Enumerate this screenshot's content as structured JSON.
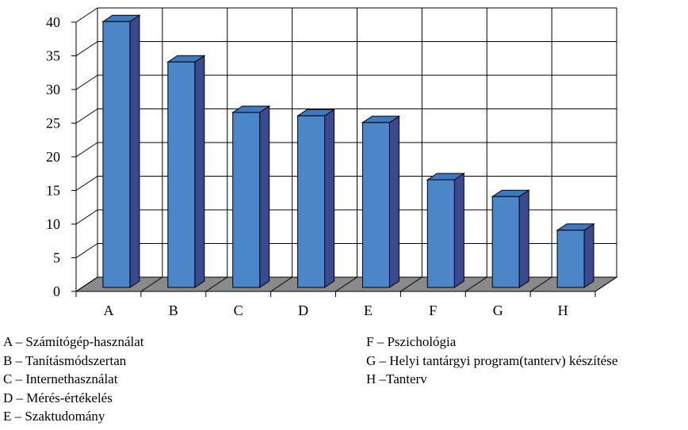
{
  "chart_data": {
    "type": "bar",
    "style": "3d-column",
    "categories": [
      "A",
      "B",
      "C",
      "D",
      "E",
      "F",
      "G",
      "H"
    ],
    "values": [
      39.5,
      33.5,
      26,
      25.5,
      24.5,
      16,
      13.5,
      8.5
    ],
    "ylim": [
      0,
      40
    ],
    "yticks": [
      "0",
      "5",
      "10",
      "15",
      "20",
      "25",
      "30",
      "35",
      "40"
    ],
    "grid": true,
    "bar_color": "#4a86c8",
    "bar_side_color": "#3a4a8c",
    "bar_top_color": "#3e78c0",
    "floor_color": "#8a8a8a",
    "legend": {
      "left": [
        "A – Számítógép-használat",
        "B – Tanításmódszertan",
        "C – Internethasználat",
        "D – Mérés-értékelés",
        "E – Szaktudomány"
      ],
      "right": [
        "F – Pszichológia",
        "G – Helyi tantárgyi program(tanterv) készítése",
        "H –Tanterv"
      ]
    }
  }
}
